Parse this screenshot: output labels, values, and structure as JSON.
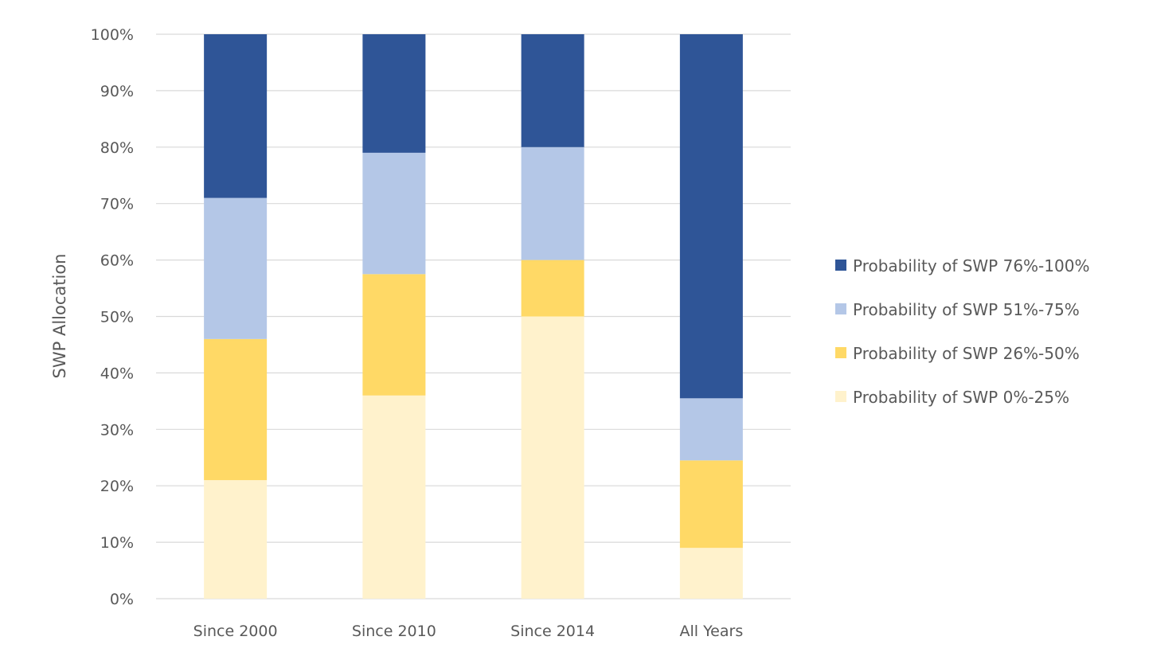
{
  "chart_data": {
    "type": "bar",
    "stacked": true,
    "categories": [
      "Since 2000",
      "Since 2010",
      "Since 2014",
      "All Years"
    ],
    "series": [
      {
        "name": "Probability of SWP 0%-25%",
        "color": "#fff2cc",
        "values": [
          21,
          36,
          50,
          9
        ]
      },
      {
        "name": "Probability of SWP 26%-50%",
        "color": "#ffd966",
        "values": [
          25,
          21.5,
          10,
          15.5
        ]
      },
      {
        "name": "Probability of SWP 51%-75%",
        "color": "#b4c7e7",
        "values": [
          25,
          21.5,
          20,
          11
        ]
      },
      {
        "name": "Probability of SWP 76%-100%",
        "color": "#2f5597",
        "values": [
          29,
          21,
          20,
          64.5
        ]
      }
    ],
    "legend_order": [
      3,
      2,
      1,
      0
    ],
    "ylabel": "SWP Allocation",
    "xlabel": "",
    "title": "",
    "ylim": [
      0,
      100
    ],
    "yticks": [
      "0%",
      "10%",
      "20%",
      "30%",
      "40%",
      "50%",
      "60%",
      "70%",
      "80%",
      "90%",
      "100%"
    ],
    "grid": true,
    "legend_position": "right"
  }
}
